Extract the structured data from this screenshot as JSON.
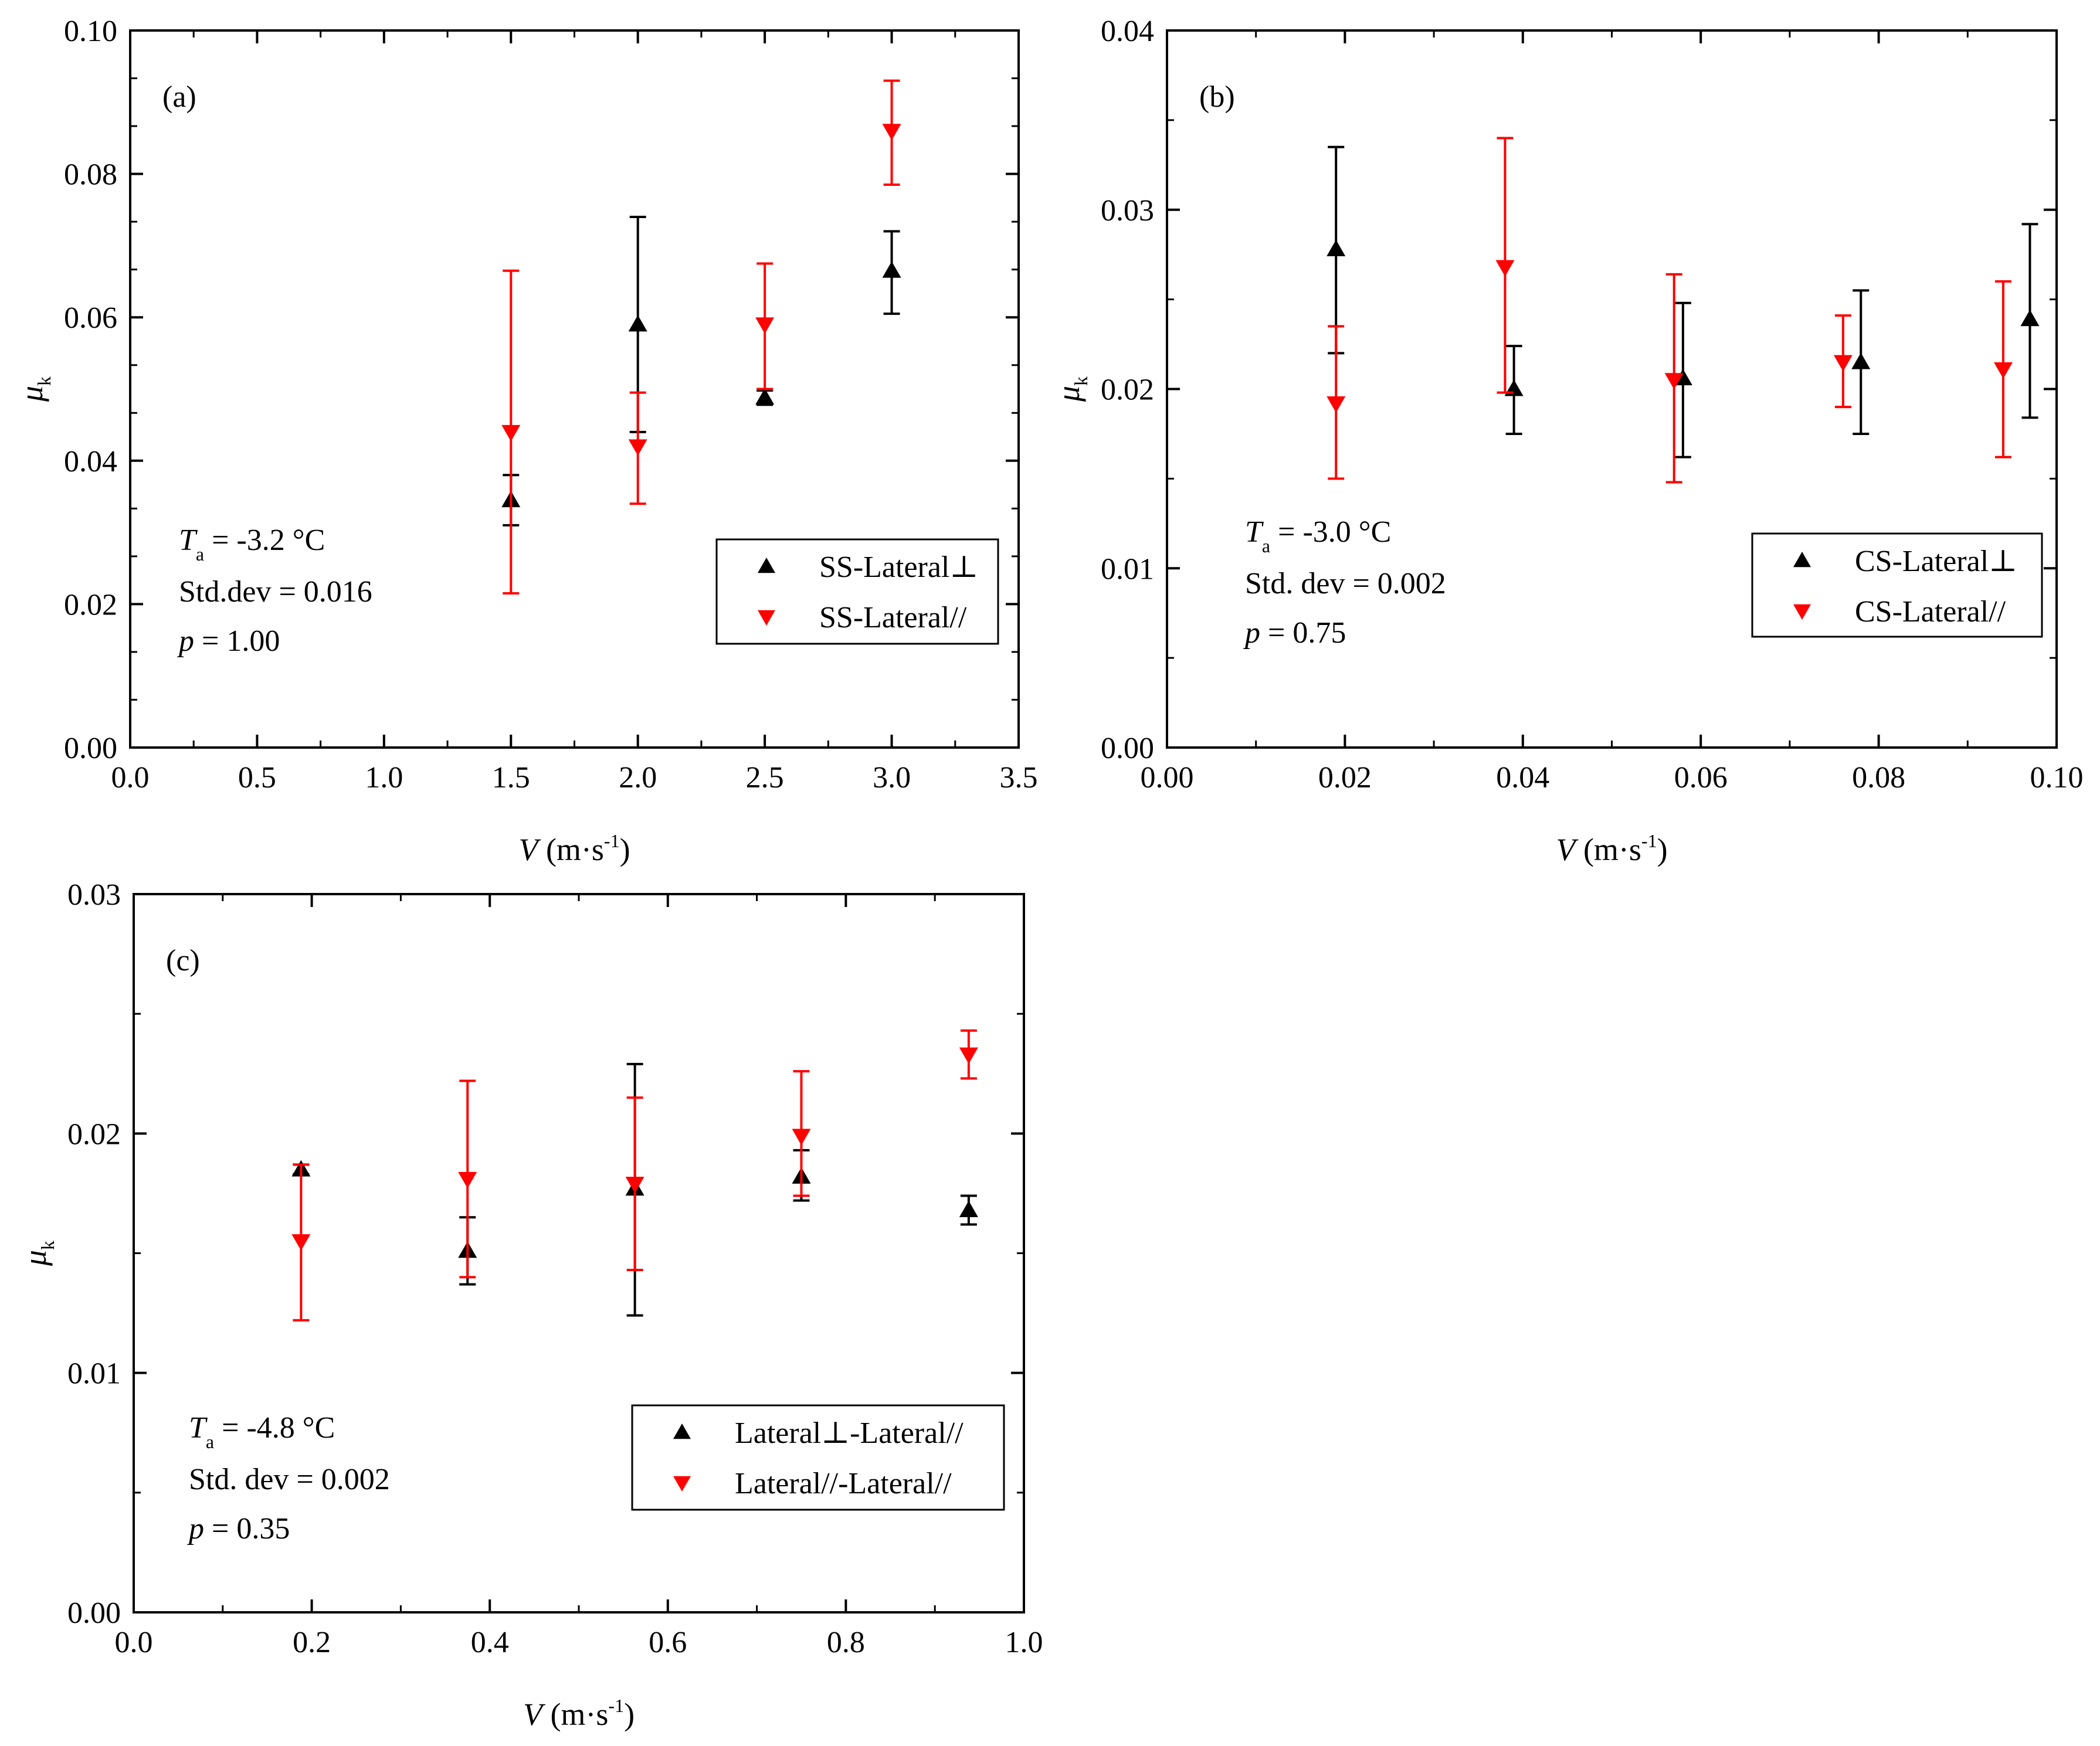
{
  "chart_data": [
    {
      "type": "scatter",
      "panel_label": "(a)",
      "xlabel": {
        "symbol": "V",
        "unit_pre": " (m·s",
        "unit_sup": "-1",
        "unit_post": ")"
      },
      "ylabel": {
        "symbol": "μ",
        "sub": "k"
      },
      "xlim": [
        0,
        3.5
      ],
      "ylim": [
        0,
        0.1
      ],
      "xticks": [
        "0.0",
        "0.5",
        "1.0",
        "1.5",
        "2.0",
        "2.5",
        "3.0",
        "3.5"
      ],
      "yticks": [
        "0.00",
        "0.02",
        "0.04",
        "0.06",
        "0.08",
        "0.10"
      ],
      "annotation": {
        "ta_symbol": "T",
        "ta_sub": "a",
        "ta_value": " = -3.2 °C",
        "std": "Std.dev = 0.016",
        "p_symbol": "p",
        "p_value": " = 1.00"
      },
      "legend_position": "lower-right",
      "series": [
        {
          "name": "SS-Lateral⊥",
          "color": "#000000",
          "marker": "triangle-up",
          "points": [
            {
              "x": 1.5,
              "y": 0.0345,
              "lo": 0.031,
              "hi": 0.038
            },
            {
              "x": 2.0,
              "y": 0.059,
              "lo": 0.044,
              "hi": 0.074
            },
            {
              "x": 2.5,
              "y": 0.0488,
              "lo": 0.0478,
              "hi": 0.0498
            },
            {
              "x": 3.0,
              "y": 0.0665,
              "lo": 0.0605,
              "hi": 0.072
            }
          ]
        },
        {
          "name": "SS-Lateral//",
          "color": "#ff0000",
          "marker": "triangle-down",
          "points": [
            {
              "x": 1.5,
              "y": 0.044,
              "lo": 0.0215,
              "hi": 0.0665
            },
            {
              "x": 2.0,
              "y": 0.042,
              "lo": 0.034,
              "hi": 0.0495
            },
            {
              "x": 2.5,
              "y": 0.059,
              "lo": 0.05,
              "hi": 0.0675
            },
            {
              "x": 3.0,
              "y": 0.086,
              "lo": 0.0785,
              "hi": 0.093
            }
          ]
        }
      ]
    },
    {
      "type": "scatter",
      "panel_label": "(b)",
      "xlabel": {
        "symbol": "V",
        "unit_pre": " (m·s",
        "unit_sup": "-1",
        "unit_post": ")"
      },
      "ylabel": {
        "symbol": "μ",
        "sub": "k"
      },
      "xlim": [
        0,
        0.1
      ],
      "ylim": [
        0,
        0.04
      ],
      "xticks": [
        "0.00",
        "0.02",
        "0.04",
        "0.06",
        "0.08",
        "0.10"
      ],
      "yticks": [
        "0.00",
        "0.01",
        "0.02",
        "0.03",
        "0.04"
      ],
      "annotation": {
        "ta_symbol": "T",
        "ta_sub": "a",
        "ta_value": " = -3.0 °C",
        "std": "Std. dev = 0.002",
        "p_symbol": "p",
        "p_value": " = 0.75"
      },
      "legend_position": "lower-right",
      "series": [
        {
          "name": "CS-Lateral⊥",
          "color": "#000000",
          "marker": "triangle-up",
          "points": [
            {
              "x": 0.019,
              "y": 0.0278,
              "lo": 0.022,
              "hi": 0.0335
            },
            {
              "x": 0.039,
              "y": 0.02,
              "lo": 0.0175,
              "hi": 0.0224
            },
            {
              "x": 0.058,
              "y": 0.0206,
              "lo": 0.0162,
              "hi": 0.0248
            },
            {
              "x": 0.078,
              "y": 0.0215,
              "lo": 0.0175,
              "hi": 0.0255
            },
            {
              "x": 0.097,
              "y": 0.0239,
              "lo": 0.0184,
              "hi": 0.0292
            }
          ]
        },
        {
          "name": "CS-Lateral//",
          "color": "#ff0000",
          "marker": "triangle-down",
          "points": [
            {
              "x": 0.019,
              "y": 0.0192,
              "lo": 0.015,
              "hi": 0.0235
            },
            {
              "x": 0.038,
              "y": 0.0268,
              "lo": 0.0198,
              "hi": 0.034
            },
            {
              "x": 0.057,
              "y": 0.0205,
              "lo": 0.0148,
              "hi": 0.0264
            },
            {
              "x": 0.076,
              "y": 0.0215,
              "lo": 0.019,
              "hi": 0.0241
            },
            {
              "x": 0.094,
              "y": 0.0211,
              "lo": 0.0162,
              "hi": 0.026
            }
          ]
        }
      ]
    },
    {
      "type": "scatter",
      "panel_label": "(c)",
      "xlabel": {
        "symbol": "V",
        "unit_pre": " (m·s",
        "unit_sup": "-1",
        "unit_post": ")"
      },
      "ylabel": {
        "symbol": "μ",
        "sub": "k"
      },
      "xlim": [
        0,
        1.0
      ],
      "ylim": [
        0,
        0.03
      ],
      "xticks": [
        "0.0",
        "0.2",
        "0.4",
        "0.6",
        "0.8",
        "1.0"
      ],
      "yticks": [
        "0.00",
        "0.01",
        "0.02",
        "0.03"
      ],
      "annotation": {
        "ta_symbol": "T",
        "ta_sub": "a",
        "ta_value": " = -4.8 °C",
        "std": "Std. dev = 0.002",
        "p_symbol": "p",
        "p_value": " = 0.35"
      },
      "legend_position": "lower-right",
      "series": [
        {
          "name": "Lateral⊥-Lateral//",
          "color": "#000000",
          "marker": "triangle-up",
          "points": [
            {
              "x": 0.188,
              "y": 0.0185,
              "lo": 0.0183,
              "hi": 0.0187
            },
            {
              "x": 0.375,
              "y": 0.0151,
              "lo": 0.0137,
              "hi": 0.0165
            },
            {
              "x": 0.563,
              "y": 0.0177,
              "lo": 0.0124,
              "hi": 0.0229
            },
            {
              "x": 0.75,
              "y": 0.0182,
              "lo": 0.0172,
              "hi": 0.0193
            },
            {
              "x": 0.938,
              "y": 0.0168,
              "lo": 0.0162,
              "hi": 0.0174
            }
          ]
        },
        {
          "name": "Lateral//-Lateral//",
          "color": "#ff0000",
          "marker": "triangle-down",
          "points": [
            {
              "x": 0.188,
              "y": 0.0155,
              "lo": 0.0122,
              "hi": 0.0187
            },
            {
              "x": 0.375,
              "y": 0.0181,
              "lo": 0.014,
              "hi": 0.0222
            },
            {
              "x": 0.563,
              "y": 0.0179,
              "lo": 0.0143,
              "hi": 0.0215
            },
            {
              "x": 0.75,
              "y": 0.0199,
              "lo": 0.0174,
              "hi": 0.0226
            },
            {
              "x": 0.938,
              "y": 0.0233,
              "lo": 0.0223,
              "hi": 0.0243
            }
          ]
        }
      ]
    }
  ]
}
